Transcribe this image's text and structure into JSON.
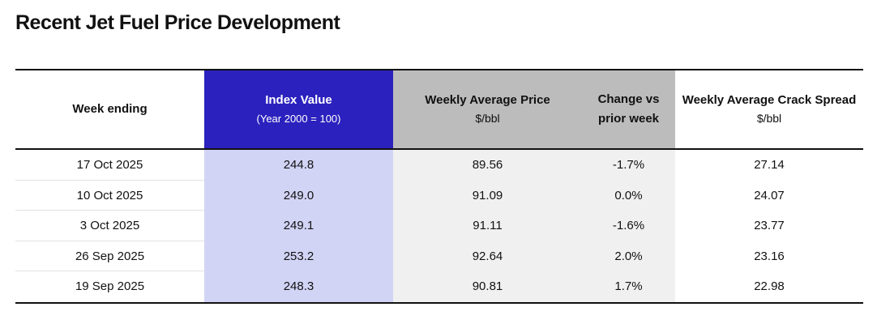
{
  "title": "Recent Jet Fuel Price Development",
  "colors": {
    "ink": "#111111",
    "accent_blue": "#2B21BE",
    "accent_blue_light": "#D2D4F6",
    "header_gray": "#BCBCBC",
    "body_gray": "#F0F0F0",
    "divider": "#E2E2E2",
    "page_bg": "#FFFFFF"
  },
  "chart_data": {
    "type": "table",
    "title": "Recent Jet Fuel Price Development",
    "columns": [
      {
        "label": "Week ending",
        "sublabel": ""
      },
      {
        "label": "Index Value",
        "sublabel": "(Year 2000 = 100)"
      },
      {
        "label": "Weekly Average Price",
        "sublabel": "$/bbl"
      },
      {
        "label": "Change vs",
        "sublabel": "prior week"
      },
      {
        "label": "Weekly Average Crack Spread",
        "sublabel": "$/bbl"
      }
    ],
    "rows": [
      [
        "17 Oct 2025",
        "244.8",
        "89.56",
        "-1.7%",
        "27.14"
      ],
      [
        "10 Oct 2025",
        "249.0",
        "91.09",
        "0.0%",
        "24.07"
      ],
      [
        "3 Oct 2025",
        "249.1",
        "91.11",
        "-1.6%",
        "23.77"
      ],
      [
        "26 Sep 2025",
        "253.2",
        "92.64",
        "2.0%",
        "23.16"
      ],
      [
        "19 Sep 2025",
        "248.3",
        "90.81",
        "1.7%",
        "22.98"
      ]
    ]
  }
}
